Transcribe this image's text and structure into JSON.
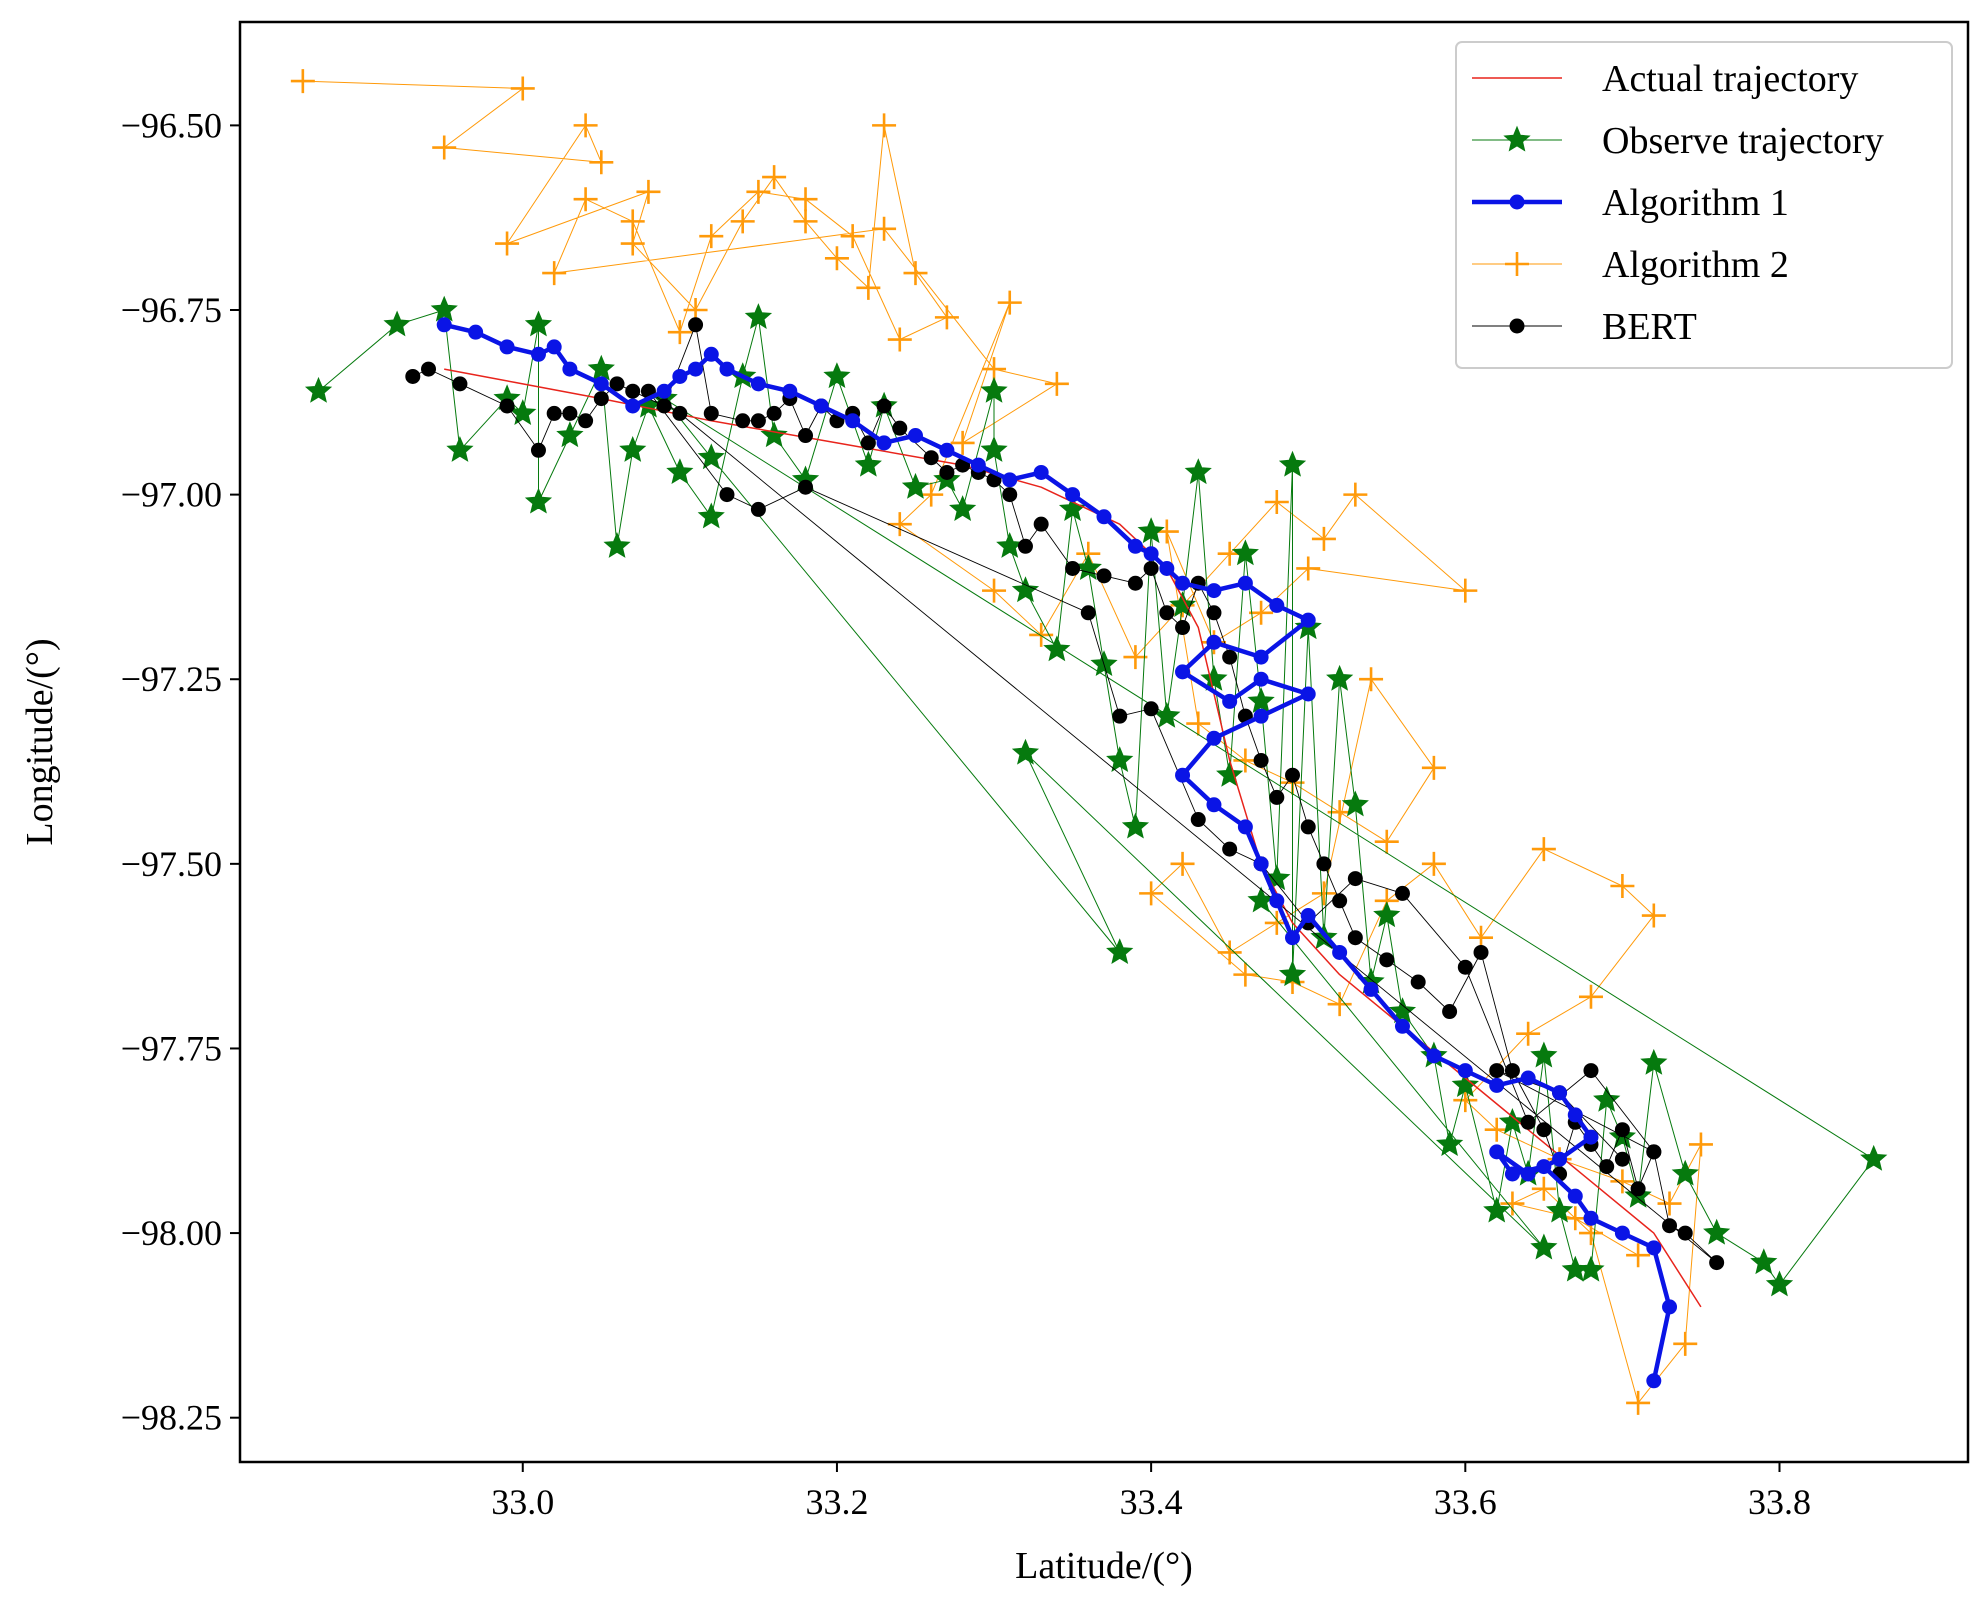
{
  "chart_data": {
    "type": "line",
    "title": "",
    "xlabel": "Latitude/(°)",
    "ylabel": "Longitude/(°)",
    "xlim": [
      32.82,
      33.92
    ],
    "ylim": [
      -98.31,
      -96.36
    ],
    "xticks": [
      {
        "value": 33.0,
        "label": "33.0"
      },
      {
        "value": 33.2,
        "label": "33.2"
      },
      {
        "value": 33.4,
        "label": "33.4"
      },
      {
        "value": 33.6,
        "label": "33.6"
      },
      {
        "value": 33.8,
        "label": "33.8"
      }
    ],
    "yticks": [
      {
        "value": -96.5,
        "label": "−96.50"
      },
      {
        "value": -96.75,
        "label": "−96.75"
      },
      {
        "value": -97.0,
        "label": "−97.00"
      },
      {
        "value": -97.25,
        "label": "−97.25"
      },
      {
        "value": -97.5,
        "label": "−97.50"
      },
      {
        "value": -97.75,
        "label": "−97.75"
      },
      {
        "value": -98.0,
        "label": "−98.00"
      },
      {
        "value": -98.25,
        "label": "−98.25"
      }
    ],
    "legend_position": "top-right",
    "series": [
      {
        "name": "Actual trajectory",
        "color": "#e8241c",
        "marker": "none",
        "x": [
          32.95,
          33.05,
          33.12,
          33.2,
          33.28,
          33.33,
          33.38,
          33.41,
          33.43,
          33.44,
          33.45,
          33.46,
          33.47,
          33.49,
          33.52,
          33.56,
          33.6,
          33.64,
          33.68,
          33.72,
          33.75
        ],
        "y": [
          -96.83,
          -96.87,
          -96.9,
          -96.93,
          -96.96,
          -96.99,
          -97.04,
          -97.1,
          -97.18,
          -97.27,
          -97.36,
          -97.43,
          -97.5,
          -97.58,
          -97.65,
          -97.72,
          -97.79,
          -97.86,
          -97.93,
          -98.0,
          -98.1
        ]
      },
      {
        "name": "Observe trajectory",
        "color": "#067a0e",
        "marker": "star",
        "x": [
          32.87,
          32.92,
          32.95,
          32.96,
          32.99,
          33.0,
          33.01,
          33.01,
          33.03,
          33.05,
          33.06,
          33.07,
          33.08,
          33.1,
          33.12,
          33.14,
          33.15,
          33.16,
          33.18,
          33.2,
          33.22,
          33.23,
          33.25,
          33.27,
          33.28,
          33.3,
          33.3,
          33.31,
          33.32,
          33.34,
          33.35,
          33.36,
          33.37,
          33.38,
          33.39,
          33.4,
          33.41,
          33.42,
          33.43,
          33.44,
          33.45,
          33.46,
          33.47,
          33.48,
          33.49,
          33.49,
          33.5,
          33.51,
          33.52,
          33.53,
          33.54,
          33.55,
          33.56,
          33.58,
          33.59,
          33.6,
          33.62,
          33.63,
          33.64,
          33.65,
          33.66,
          33.67,
          33.68,
          33.69,
          33.7,
          33.71,
          33.72,
          33.74,
          33.76,
          33.79,
          33.8,
          33.86,
          33.09,
          33.12,
          33.38,
          33.32,
          33.65,
          33.47
        ],
        "y": [
          -96.86,
          -96.77,
          -96.75,
          -96.94,
          -96.87,
          -96.89,
          -96.77,
          -97.01,
          -96.92,
          -96.83,
          -97.07,
          -96.94,
          -96.88,
          -96.97,
          -97.03,
          -96.84,
          -96.76,
          -96.92,
          -96.98,
          -96.84,
          -96.96,
          -96.88,
          -96.99,
          -96.98,
          -97.02,
          -96.86,
          -96.94,
          -97.07,
          -97.13,
          -97.21,
          -97.02,
          -97.1,
          -97.23,
          -97.36,
          -97.45,
          -97.05,
          -97.3,
          -97.15,
          -96.97,
          -97.25,
          -97.38,
          -97.08,
          -97.28,
          -97.52,
          -96.96,
          -97.65,
          -97.18,
          -97.6,
          -97.25,
          -97.42,
          -97.66,
          -97.57,
          -97.7,
          -97.76,
          -97.88,
          -97.8,
          -97.97,
          -97.85,
          -97.92,
          -97.76,
          -97.97,
          -98.05,
          -98.05,
          -97.82,
          -97.87,
          -97.95,
          -97.77,
          -97.92,
          -98.0,
          -98.04,
          -98.07,
          -97.9,
          -96.87,
          -96.95,
          -97.62,
          -97.35,
          -98.02,
          -97.55
        ]
      },
      {
        "name": "Algorithm 1",
        "color": "#0a14e6",
        "marker": "circle",
        "x": [
          32.95,
          32.97,
          32.99,
          33.01,
          33.02,
          33.03,
          33.05,
          33.07,
          33.09,
          33.1,
          33.11,
          33.12,
          33.13,
          33.15,
          33.17,
          33.19,
          33.21,
          33.23,
          33.25,
          33.27,
          33.29,
          33.31,
          33.33,
          33.35,
          33.37,
          33.39,
          33.4,
          33.41,
          33.42,
          33.44,
          33.46,
          33.48,
          33.5,
          33.47,
          33.44,
          33.42,
          33.45,
          33.47,
          33.5,
          33.47,
          33.44,
          33.42,
          33.44,
          33.46,
          33.47,
          33.48,
          33.49,
          33.5,
          33.52,
          33.54,
          33.56,
          33.58,
          33.6,
          33.62,
          33.64,
          33.66,
          33.67,
          33.68,
          33.66,
          33.64,
          33.62,
          33.63,
          33.65,
          33.67,
          33.68,
          33.7,
          33.72,
          33.73,
          33.72
        ],
        "y": [
          -96.77,
          -96.78,
          -96.8,
          -96.81,
          -96.8,
          -96.83,
          -96.85,
          -96.88,
          -96.86,
          -96.84,
          -96.83,
          -96.81,
          -96.83,
          -96.85,
          -96.86,
          -96.88,
          -96.9,
          -96.93,
          -96.92,
          -96.94,
          -96.96,
          -96.98,
          -96.97,
          -97.0,
          -97.03,
          -97.07,
          -97.08,
          -97.1,
          -97.12,
          -97.13,
          -97.12,
          -97.15,
          -97.17,
          -97.22,
          -97.2,
          -97.24,
          -97.28,
          -97.25,
          -97.27,
          -97.3,
          -97.33,
          -97.38,
          -97.42,
          -97.45,
          -97.5,
          -97.55,
          -97.6,
          -97.57,
          -97.62,
          -97.67,
          -97.72,
          -97.76,
          -97.78,
          -97.8,
          -97.79,
          -97.81,
          -97.84,
          -97.87,
          -97.9,
          -97.92,
          -97.89,
          -97.92,
          -97.91,
          -97.95,
          -97.98,
          -98.0,
          -98.02,
          -98.1,
          -98.2
        ]
      },
      {
        "name": "Algorithm 2",
        "color": "#ff9a0a",
        "marker": "plus",
        "x": [
          32.86,
          33.0,
          32.95,
          33.05,
          33.04,
          32.99,
          33.08,
          33.07,
          33.11,
          33.14,
          33.16,
          33.18,
          33.2,
          33.22,
          33.23,
          33.25,
          33.27,
          33.24,
          33.21,
          33.18,
          33.15,
          33.12,
          33.1,
          33.07,
          33.04,
          33.02,
          33.23,
          33.3,
          33.34,
          33.28,
          33.31,
          33.26,
          33.24,
          33.3,
          33.33,
          33.36,
          33.39,
          33.42,
          33.45,
          33.48,
          33.51,
          33.53,
          33.6,
          33.5,
          33.47,
          33.44,
          33.41,
          33.43,
          33.46,
          33.49,
          33.52,
          33.55,
          33.58,
          33.54,
          33.51,
          33.48,
          33.45,
          33.42,
          33.4,
          33.46,
          33.49,
          33.52,
          33.55,
          33.58,
          33.61,
          33.65,
          33.7,
          33.72,
          33.68,
          33.64,
          33.6,
          33.62,
          33.66,
          33.7,
          33.73,
          33.75,
          33.74,
          33.71,
          33.68,
          33.65,
          33.63,
          33.67,
          33.71
        ],
        "y": [
          -96.44,
          -96.45,
          -96.53,
          -96.55,
          -96.5,
          -96.66,
          -96.59,
          -96.66,
          -96.75,
          -96.63,
          -96.57,
          -96.63,
          -96.68,
          -96.72,
          -96.5,
          -96.7,
          -96.76,
          -96.79,
          -96.65,
          -96.6,
          -96.59,
          -96.65,
          -96.78,
          -96.63,
          -96.6,
          -96.7,
          -96.64,
          -96.83,
          -96.85,
          -96.93,
          -96.74,
          -97.0,
          -97.04,
          -97.13,
          -97.19,
          -97.08,
          -97.22,
          -97.15,
          -97.08,
          -97.01,
          -97.06,
          -97.0,
          -97.13,
          -97.1,
          -97.16,
          -97.2,
          -97.05,
          -97.31,
          -97.36,
          -97.39,
          -97.43,
          -97.47,
          -97.37,
          -97.25,
          -97.54,
          -97.58,
          -97.62,
          -97.5,
          -97.54,
          -97.65,
          -97.66,
          -97.69,
          -97.55,
          -97.5,
          -97.6,
          -97.48,
          -97.53,
          -97.57,
          -97.68,
          -97.73,
          -97.82,
          -97.86,
          -97.9,
          -97.93,
          -97.96,
          -97.88,
          -98.15,
          -98.23,
          -98.0,
          -97.94,
          -97.96,
          -97.98,
          -98.03
        ]
      },
      {
        "name": "BERT",
        "color": "#000000",
        "marker": "circle",
        "x": [
          32.93,
          32.94,
          32.96,
          32.99,
          33.01,
          33.02,
          33.03,
          33.04,
          33.05,
          33.06,
          33.07,
          33.09,
          33.11,
          33.12,
          33.14,
          33.15,
          33.16,
          33.17,
          33.18,
          33.19,
          33.2,
          33.21,
          33.22,
          33.23,
          33.24,
          33.26,
          33.27,
          33.28,
          33.29,
          33.3,
          33.31,
          33.32,
          33.33,
          33.35,
          33.37,
          33.39,
          33.4,
          33.41,
          33.42,
          33.43,
          33.44,
          33.45,
          33.46,
          33.47,
          33.48,
          33.49,
          33.5,
          33.51,
          33.52,
          33.53,
          33.55,
          33.57,
          33.59,
          33.61,
          33.63,
          33.65,
          33.66,
          33.67,
          33.68,
          33.69,
          33.7,
          33.71,
          33.72,
          33.73,
          33.74,
          33.76,
          33.1,
          33.08,
          33.13,
          33.15,
          33.18,
          33.36,
          33.38,
          33.4,
          33.43,
          33.45,
          33.47,
          33.5,
          33.53,
          33.56,
          33.6,
          33.64,
          33.68,
          33.72,
          33.62,
          33.66,
          33.7
        ],
        "y": [
          -96.84,
          -96.83,
          -96.85,
          -96.88,
          -96.94,
          -96.89,
          -96.89,
          -96.9,
          -96.87,
          -96.85,
          -96.86,
          -96.88,
          -96.77,
          -96.89,
          -96.9,
          -96.9,
          -96.89,
          -96.87,
          -96.92,
          -96.88,
          -96.9,
          -96.89,
          -96.93,
          -96.88,
          -96.91,
          -96.95,
          -96.97,
          -96.96,
          -96.97,
          -96.98,
          -97.0,
          -97.07,
          -97.04,
          -97.1,
          -97.11,
          -97.12,
          -97.1,
          -97.16,
          -97.18,
          -97.12,
          -97.16,
          -97.22,
          -97.3,
          -97.36,
          -97.41,
          -97.38,
          -97.45,
          -97.5,
          -97.55,
          -97.6,
          -97.63,
          -97.66,
          -97.7,
          -97.62,
          -97.78,
          -97.86,
          -97.92,
          -97.85,
          -97.88,
          -97.91,
          -97.86,
          -97.94,
          -97.89,
          -97.99,
          -98.0,
          -98.04,
          -96.89,
          -96.86,
          -97.0,
          -97.02,
          -96.99,
          -97.16,
          -97.3,
          -97.29,
          -97.44,
          -97.48,
          -97.5,
          -97.58,
          -97.52,
          -97.54,
          -97.64,
          -97.85,
          -97.78,
          -97.89,
          -97.78,
          -97.81,
          -97.9
        ]
      }
    ]
  }
}
